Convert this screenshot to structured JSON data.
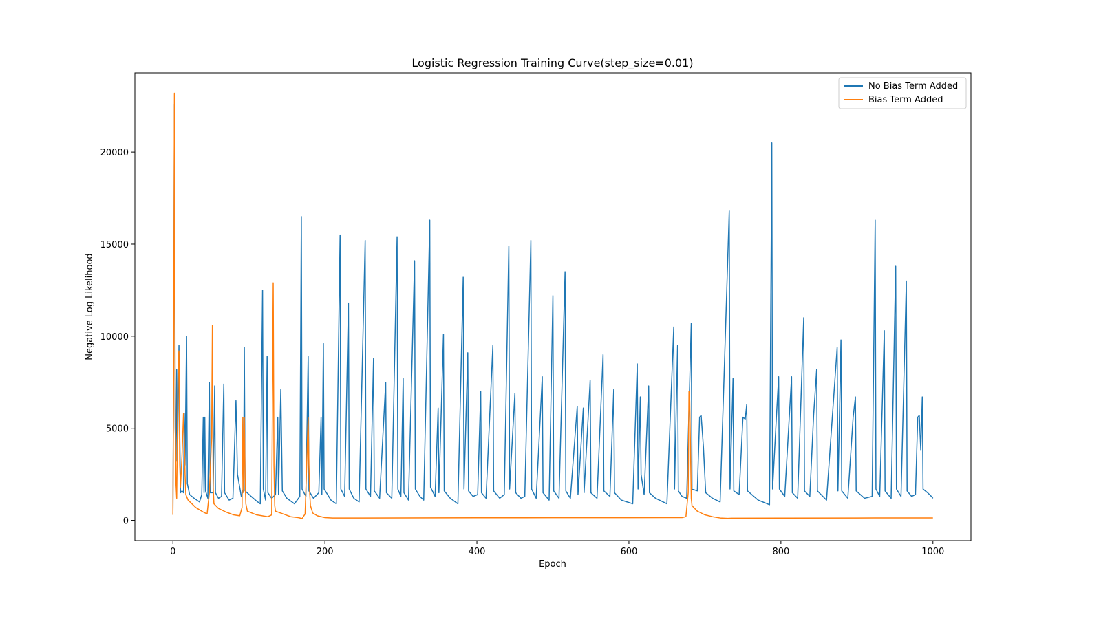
{
  "chart_data": {
    "type": "line",
    "title": "Logistic Regression Training Curve(step_size=0.01)",
    "xlabel": "Epoch",
    "ylabel": "Negative Log Likelihood",
    "xlim": [
      -50,
      1050
    ],
    "ylim": [
      -1100,
      24300
    ],
    "xticks": [
      0,
      200,
      400,
      600,
      800,
      1000
    ],
    "yticks": [
      0,
      5000,
      10000,
      15000,
      20000
    ],
    "grid": false,
    "legend_position": "top-right",
    "series": [
      {
        "name": "No Bias Term Added",
        "color": "#1f77b4",
        "points": [
          [
            0,
            300
          ],
          [
            1,
            9000
          ],
          [
            2,
            22600
          ],
          [
            3,
            5000
          ],
          [
            4,
            3200
          ],
          [
            5,
            8200
          ],
          [
            6,
            3100
          ],
          [
            7,
            6500
          ],
          [
            8,
            9500
          ],
          [
            9,
            4800
          ],
          [
            10,
            1500
          ],
          [
            12,
            1600
          ],
          [
            14,
            1500
          ],
          [
            15,
            5800
          ],
          [
            16,
            3000
          ],
          [
            18,
            10000
          ],
          [
            19,
            2000
          ],
          [
            22,
            1400
          ],
          [
            28,
            1200
          ],
          [
            35,
            1000
          ],
          [
            38,
            1400
          ],
          [
            40,
            5600
          ],
          [
            41,
            1500
          ],
          [
            42,
            5600
          ],
          [
            43,
            1600
          ],
          [
            46,
            1200
          ],
          [
            48,
            7500
          ],
          [
            49,
            1500
          ],
          [
            53,
            1500
          ],
          [
            55,
            7300
          ],
          [
            56,
            1500
          ],
          [
            60,
            1200
          ],
          [
            64,
            1300
          ],
          [
            67,
            7400
          ],
          [
            68,
            1500
          ],
          [
            74,
            1100
          ],
          [
            79,
            1200
          ],
          [
            83,
            6500
          ],
          [
            85,
            2500
          ],
          [
            90,
            1300
          ],
          [
            93,
            1700
          ],
          [
            94,
            9400
          ],
          [
            95,
            1600
          ],
          [
            103,
            1300
          ],
          [
            110,
            1050
          ],
          [
            115,
            900
          ],
          [
            118,
            12500
          ],
          [
            119,
            1700
          ],
          [
            122,
            1100
          ],
          [
            124,
            8900
          ],
          [
            125,
            1500
          ],
          [
            130,
            1200
          ],
          [
            135,
            1400
          ],
          [
            138,
            5600
          ],
          [
            139,
            1400
          ],
          [
            142,
            7100
          ],
          [
            144,
            1600
          ],
          [
            150,
            1200
          ],
          [
            160,
            900
          ],
          [
            167,
            1300
          ],
          [
            169,
            16500
          ],
          [
            170,
            1700
          ],
          [
            175,
            1300
          ],
          [
            178,
            8900
          ],
          [
            179,
            1600
          ],
          [
            185,
            1200
          ],
          [
            192,
            1500
          ],
          [
            195,
            5600
          ],
          [
            196,
            1400
          ],
          [
            198,
            9600
          ],
          [
            199,
            1700
          ],
          [
            208,
            1100
          ],
          [
            215,
            900
          ],
          [
            220,
            15500
          ],
          [
            221,
            1700
          ],
          [
            226,
            1300
          ],
          [
            231,
            11800
          ],
          [
            232,
            1700
          ],
          [
            238,
            1200
          ],
          [
            245,
            1000
          ],
          [
            253,
            15200
          ],
          [
            254,
            1700
          ],
          [
            260,
            1300
          ],
          [
            264,
            8800
          ],
          [
            265,
            1600
          ],
          [
            272,
            1200
          ],
          [
            280,
            7500
          ],
          [
            281,
            1500
          ],
          [
            288,
            1200
          ],
          [
            295,
            15400
          ],
          [
            296,
            1700
          ],
          [
            300,
            1300
          ],
          [
            303,
            7700
          ],
          [
            304,
            1500
          ],
          [
            310,
            1100
          ],
          [
            318,
            14100
          ],
          [
            319,
            1700
          ],
          [
            325,
            1300
          ],
          [
            330,
            1100
          ],
          [
            338,
            16300
          ],
          [
            339,
            1800
          ],
          [
            345,
            1300
          ],
          [
            349,
            6100
          ],
          [
            350,
            1500
          ],
          [
            356,
            10100
          ],
          [
            357,
            1600
          ],
          [
            365,
            1200
          ],
          [
            375,
            900
          ],
          [
            382,
            13200
          ],
          [
            383,
            1700
          ],
          [
            388,
            9100
          ],
          [
            389,
            1600
          ],
          [
            395,
            1300
          ],
          [
            401,
            1400
          ],
          [
            405,
            7000
          ],
          [
            406,
            1500
          ],
          [
            412,
            1200
          ],
          [
            421,
            9500
          ],
          [
            422,
            1600
          ],
          [
            430,
            1200
          ],
          [
            436,
            1400
          ],
          [
            442,
            14900
          ],
          [
            443,
            1700
          ],
          [
            450,
            6900
          ],
          [
            451,
            1500
          ],
          [
            458,
            1200
          ],
          [
            463,
            1300
          ],
          [
            471,
            15200
          ],
          [
            472,
            1700
          ],
          [
            478,
            1200
          ],
          [
            486,
            7800
          ],
          [
            487,
            1500
          ],
          [
            495,
            1100
          ],
          [
            500,
            12200
          ],
          [
            501,
            1600
          ],
          [
            508,
            1200
          ],
          [
            516,
            13500
          ],
          [
            517,
            1600
          ],
          [
            523,
            1200
          ],
          [
            532,
            6200
          ],
          [
            533,
            1400
          ],
          [
            540,
            6100
          ],
          [
            541,
            1500
          ],
          [
            549,
            7600
          ],
          [
            550,
            1500
          ],
          [
            558,
            1200
          ],
          [
            566,
            9000
          ],
          [
            567,
            1600
          ],
          [
            575,
            1300
          ],
          [
            580,
            7100
          ],
          [
            581,
            1500
          ],
          [
            590,
            1100
          ],
          [
            605,
            900
          ],
          [
            611,
            8500
          ],
          [
            612,
            1700
          ],
          [
            615,
            6700
          ],
          [
            616,
            2500
          ],
          [
            620,
            1400
          ],
          [
            626,
            7300
          ],
          [
            627,
            1500
          ],
          [
            635,
            1200
          ],
          [
            650,
            900
          ],
          [
            659,
            10500
          ],
          [
            660,
            1700
          ],
          [
            664,
            9500
          ],
          [
            665,
            1600
          ],
          [
            670,
            1300
          ],
          [
            676,
            1200
          ],
          [
            682,
            10700
          ],
          [
            683,
            1700
          ],
          [
            690,
            1600
          ],
          [
            693,
            5600
          ],
          [
            695,
            5700
          ],
          [
            698,
            4000
          ],
          [
            701,
            1500
          ],
          [
            710,
            1200
          ],
          [
            720,
            1000
          ],
          [
            732,
            16800
          ],
          [
            733,
            1700
          ],
          [
            737,
            7700
          ],
          [
            738,
            1600
          ],
          [
            745,
            1400
          ],
          [
            750,
            5600
          ],
          [
            753,
            5500
          ],
          [
            755,
            6300
          ],
          [
            756,
            1600
          ],
          [
            770,
            1100
          ],
          [
            785,
            850
          ],
          [
            788,
            20500
          ],
          [
            789,
            1700
          ],
          [
            794,
            5600
          ],
          [
            797,
            7800
          ],
          [
            798,
            1700
          ],
          [
            805,
            1300
          ],
          [
            814,
            7800
          ],
          [
            815,
            1500
          ],
          [
            822,
            1200
          ],
          [
            830,
            11000
          ],
          [
            831,
            1600
          ],
          [
            838,
            1300
          ],
          [
            843,
            5700
          ],
          [
            847,
            8200
          ],
          [
            848,
            1600
          ],
          [
            860,
            1100
          ],
          [
            874,
            9400
          ],
          [
            875,
            1600
          ],
          [
            879,
            9800
          ],
          [
            880,
            1600
          ],
          [
            888,
            1200
          ],
          [
            895,
            5600
          ],
          [
            898,
            6700
          ],
          [
            899,
            1600
          ],
          [
            910,
            1200
          ],
          [
            920,
            1300
          ],
          [
            924,
            16300
          ],
          [
            925,
            1700
          ],
          [
            930,
            1300
          ],
          [
            936,
            10300
          ],
          [
            937,
            1600
          ],
          [
            945,
            1200
          ],
          [
            951,
            13800
          ],
          [
            952,
            1700
          ],
          [
            958,
            1300
          ],
          [
            965,
            13000
          ],
          [
            966,
            1600
          ],
          [
            972,
            1300
          ],
          [
            977,
            1400
          ],
          [
            980,
            5600
          ],
          [
            982,
            5700
          ],
          [
            984,
            3800
          ],
          [
            986,
            6700
          ],
          [
            987,
            1700
          ],
          [
            993,
            1500
          ],
          [
            998,
            1300
          ],
          [
            1000,
            1200
          ]
        ]
      },
      {
        "name": "Bias Term Added",
        "color": "#ff7f0e",
        "points": [
          [
            0,
            300
          ],
          [
            1,
            8000
          ],
          [
            2,
            23200
          ],
          [
            3,
            6000
          ],
          [
            4,
            2000
          ],
          [
            5,
            1200
          ],
          [
            7,
            8800
          ],
          [
            8,
            9200
          ],
          [
            9,
            3000
          ],
          [
            10,
            1800
          ],
          [
            12,
            3500
          ],
          [
            14,
            5800
          ],
          [
            15,
            4500
          ],
          [
            16,
            2500
          ],
          [
            17,
            1400
          ],
          [
            20,
            1100
          ],
          [
            25,
            900
          ],
          [
            30,
            700
          ],
          [
            40,
            450
          ],
          [
            45,
            350
          ],
          [
            48,
            1500
          ],
          [
            51,
            4500
          ],
          [
            52,
            10600
          ],
          [
            53,
            1800
          ],
          [
            54,
            900
          ],
          [
            60,
            650
          ],
          [
            70,
            450
          ],
          [
            80,
            300
          ],
          [
            88,
            250
          ],
          [
            91,
            700
          ],
          [
            92,
            5600
          ],
          [
            93,
            1500
          ],
          [
            94,
            5600
          ],
          [
            95,
            2300
          ],
          [
            96,
            900
          ],
          [
            98,
            500
          ],
          [
            110,
            300
          ],
          [
            125,
            200
          ],
          [
            130,
            300
          ],
          [
            132,
            12900
          ],
          [
            133,
            3000
          ],
          [
            134,
            800
          ],
          [
            135,
            500
          ],
          [
            145,
            350
          ],
          [
            155,
            200
          ],
          [
            165,
            150
          ],
          [
            170,
            100
          ],
          [
            174,
            350
          ],
          [
            178,
            5600
          ],
          [
            179,
            3000
          ],
          [
            180,
            1500
          ],
          [
            181,
            800
          ],
          [
            184,
            400
          ],
          [
            190,
            250
          ],
          [
            200,
            150
          ],
          [
            210,
            130
          ],
          [
            250,
            130
          ],
          [
            300,
            135
          ],
          [
            400,
            140
          ],
          [
            500,
            145
          ],
          [
            600,
            145
          ],
          [
            650,
            150
          ],
          [
            670,
            150
          ],
          [
            675,
            200
          ],
          [
            678,
            1500
          ],
          [
            679,
            7000
          ],
          [
            680,
            6500
          ],
          [
            681,
            4000
          ],
          [
            682,
            1200
          ],
          [
            683,
            800
          ],
          [
            690,
            500
          ],
          [
            700,
            300
          ],
          [
            710,
            200
          ],
          [
            720,
            130
          ],
          [
            730,
            110
          ],
          [
            735,
            120
          ],
          [
            800,
            125
          ],
          [
            900,
            130
          ],
          [
            1000,
            135
          ]
        ]
      }
    ]
  }
}
